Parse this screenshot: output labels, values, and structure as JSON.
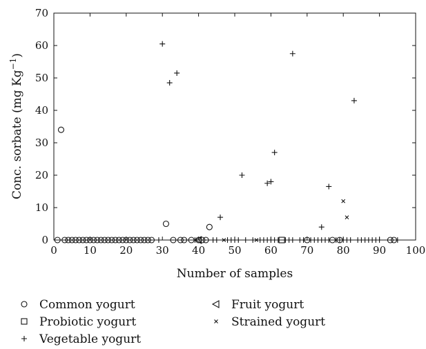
{
  "chart_data": {
    "type": "scatter",
    "title": "",
    "xlabel": "Number of samples",
    "ylabel": "Conc. sorbate (mg Kg",
    "ylabel_sup": "−1",
    "ylabel_end": ")",
    "xlim": [
      0,
      100
    ],
    "ylim": [
      0,
      70
    ],
    "xticks": [
      0,
      10,
      20,
      30,
      40,
      50,
      60,
      70,
      80,
      90,
      100
    ],
    "yticks": [
      0,
      10,
      20,
      30,
      40,
      50,
      60,
      70
    ],
    "grid": false,
    "legend_position": "bottom",
    "series": [
      {
        "name": "Common yogurt",
        "marker": "circle",
        "x": [
          1,
          2,
          3,
          4,
          5,
          6,
          7,
          8,
          9,
          10,
          11,
          12,
          13,
          14,
          15,
          16,
          17,
          18,
          19,
          20,
          21,
          22,
          23,
          24,
          25,
          26,
          27,
          31,
          33,
          35,
          36,
          38,
          40,
          41,
          42,
          43,
          70,
          77,
          79,
          93,
          94
        ],
        "y": [
          0,
          34,
          0,
          0,
          0,
          0,
          0,
          0,
          0,
          0,
          0,
          0,
          0,
          0,
          0,
          0,
          0,
          0,
          0,
          0,
          0,
          0,
          0,
          0,
          0,
          0,
          0,
          5,
          0,
          0,
          0,
          0,
          0,
          0,
          0,
          4,
          0,
          0,
          0,
          0,
          0
        ]
      },
      {
        "name": "Fruit yogurt",
        "marker": "triangle-left",
        "x": [
          40
        ],
        "y": [
          0
        ]
      },
      {
        "name": "Probiotic yogurt",
        "marker": "square",
        "x": [
          63
        ],
        "y": [
          0
        ]
      },
      {
        "name": "Strained yogurt",
        "marker": "x",
        "x": [
          47,
          56,
          80,
          81
        ],
        "y": [
          0,
          0,
          12,
          7
        ]
      },
      {
        "name": "Vegetable yogurt",
        "marker": "plus",
        "x": [
          30,
          32,
          34,
          46,
          52,
          59,
          60,
          61,
          66,
          74,
          76,
          83,
          29,
          39,
          44,
          45,
          48,
          49,
          50,
          51,
          53,
          55,
          57,
          58,
          59,
          60,
          61,
          62,
          64,
          65,
          66,
          68,
          69,
          71,
          72,
          73,
          74,
          75,
          76,
          78,
          79,
          80,
          81,
          82,
          84,
          85,
          86,
          87,
          88,
          89,
          90,
          95
        ],
        "y": [
          60.5,
          48.5,
          51.5,
          7,
          20,
          17.5,
          18,
          27,
          57.5,
          4,
          16.5,
          43,
          0,
          0,
          0,
          0,
          0,
          0,
          0,
          0,
          0,
          0,
          0,
          0,
          0,
          0,
          0,
          0,
          0,
          0,
          0,
          0,
          0,
          0,
          0,
          0,
          0,
          0,
          0,
          0,
          0,
          0,
          0,
          0,
          0,
          0,
          0,
          0,
          0,
          0,
          0,
          0
        ]
      }
    ],
    "legend_order": [
      "Common yogurt",
      "Fruit yogurt",
      "Probiotic yogurt",
      "Strained yogurt",
      "Vegetable yogurt"
    ]
  }
}
